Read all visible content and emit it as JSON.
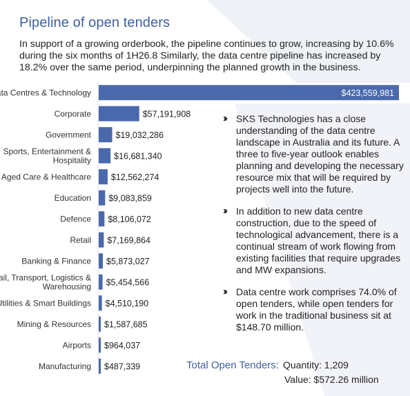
{
  "header": {
    "title": "Pipeline of open tenders",
    "intro": "In support of a growing orderbook, the pipeline continues to grow, increasing by 10.6% during the six months of 1H26.8  Similarly, the data centre pipeline has increased by 18.2% over the same period, underpinning the planned growth in the business."
  },
  "chart_data": {
    "type": "bar",
    "orientation": "horizontal",
    "categories": [
      "Data Centres & Technology",
      "Corporate",
      "Government",
      "Sports, Entertainment & Hospitality",
      "Aged Care & Healthcare",
      "Education",
      "Defence",
      "Retail",
      "Banking & Finance",
      "Rail, Transport, Logistics & Warehousing",
      "Utilities & Smart Buildings",
      "Mining & Resources",
      "Airports",
      "Manufacturing"
    ],
    "values": [
      423559981,
      57191908,
      19032286,
      16681340,
      12562274,
      9083859,
      8106072,
      7169864,
      5873027,
      5454566,
      4510190,
      1587685,
      964037,
      487339
    ],
    "value_labels": [
      "$423,559,981",
      "$57,191,908",
      "$19,032,286",
      "$16,681,340",
      "$12,562,274",
      "$9,083,859",
      "$8,106,072",
      "$7,169,864",
      "$5,873,027",
      "$5,454,566",
      "$4,510,190",
      "$1,587,685",
      "$964,037",
      "$487,339"
    ],
    "xlim": [
      0,
      423559981
    ],
    "grid": false,
    "bar_color": "#4a69ad"
  },
  "bullets": [
    "SKS Technologies has a close understanding of the data centre landscape in Australia and its future.  A three to five-year outlook enables planning and developing the necessary resource mix that will be required by projects well into the future.",
    "In addition to new data centre construction, due to the speed of technological advancement, there is a continual stream of work flowing from existing facilities that require upgrades and MW expansions.",
    "Data centre work comprises 74.0% of open tenders, while open tenders for work in the traditional business sit at $148.70 million."
  ],
  "bullet_icon": "double-chevron-right-icon",
  "totals": {
    "label": "Total Open Tenders:",
    "quantity": "Quantity: 1,209",
    "value": "Value:  $572.26 million"
  },
  "colors": {
    "title": "#3f5fa0",
    "bar": "#4a69ad",
    "background_shape": "#eef1f6"
  }
}
